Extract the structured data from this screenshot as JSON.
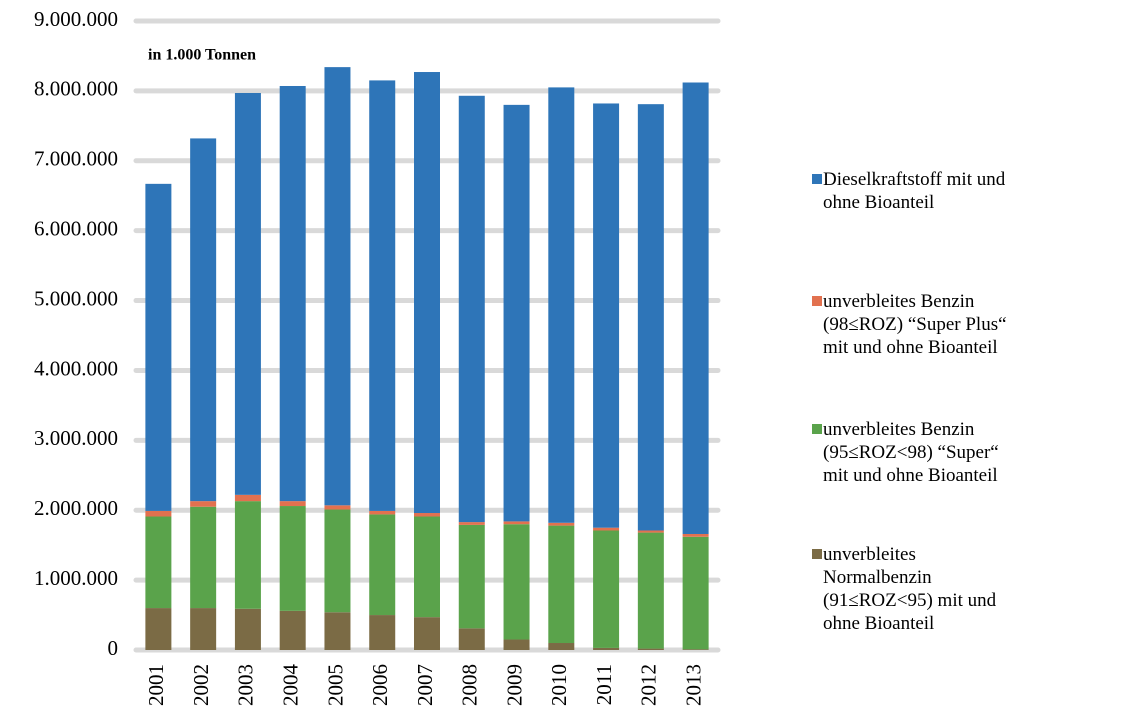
{
  "chart_data": {
    "type": "stacked_bar",
    "annotation": "in 1.000 Tonnen",
    "categories": [
      "2001",
      "2002",
      "2003",
      "2004",
      "2005",
      "2006",
      "2007",
      "2008",
      "2009",
      "2010",
      "2011",
      "2012",
      "2013"
    ],
    "series": [
      {
        "name": "unverbleites Normalbenzin (91≤ROZ<95) mit und ohne Bioanteil",
        "color": "#7b6b45",
        "values": [
          600000,
          600000,
          590000,
          560000,
          540000,
          500000,
          470000,
          310000,
          150000,
          100000,
          30000,
          20000,
          10000
        ]
      },
      {
        "name": "unverbleites Benzin (95≤ROZ<98) “Super“ mit und ohne Bioanteil",
        "color": "#5aa34b",
        "values": [
          1310000,
          1450000,
          1540000,
          1500000,
          1470000,
          1440000,
          1440000,
          1480000,
          1650000,
          1680000,
          1680000,
          1660000,
          1610000
        ]
      },
      {
        "name": "unverbleites Benzin (98≤ROZ) “Super Plus“ mit und ohne Bioanteil",
        "color": "#e2714f",
        "values": [
          80000,
          80000,
          90000,
          70000,
          60000,
          50000,
          50000,
          40000,
          40000,
          40000,
          40000,
          30000,
          40000
        ]
      },
      {
        "name": "Dieselkraftstoff mit und ohne Bioanteil",
        "color": "#2e75b8",
        "values": [
          4680000,
          5190000,
          5750000,
          5940000,
          6270000,
          6160000,
          6310000,
          6100000,
          5960000,
          6230000,
          6070000,
          6100000,
          6460000
        ]
      }
    ],
    "ylim": [
      0,
      9000000
    ],
    "yticks": [
      0,
      {
        "value": 1000000,
        "label": "1.000.000"
      },
      {
        "value": 2000000,
        "label": "2.000.000"
      },
      {
        "value": 3000000,
        "label": "3.000.000"
      },
      {
        "value": 4000000,
        "label": "4.000.000"
      },
      {
        "value": 5000000,
        "label": "5.000.000"
      },
      {
        "value": 6000000,
        "label": "6.000.000"
      },
      {
        "value": 7000000,
        "label": "7.000.000"
      },
      {
        "value": 8000000,
        "label": "8.000.000"
      },
      {
        "value": 9000000,
        "label": "9.000.000"
      }
    ],
    "grid": true,
    "legend": "right"
  }
}
